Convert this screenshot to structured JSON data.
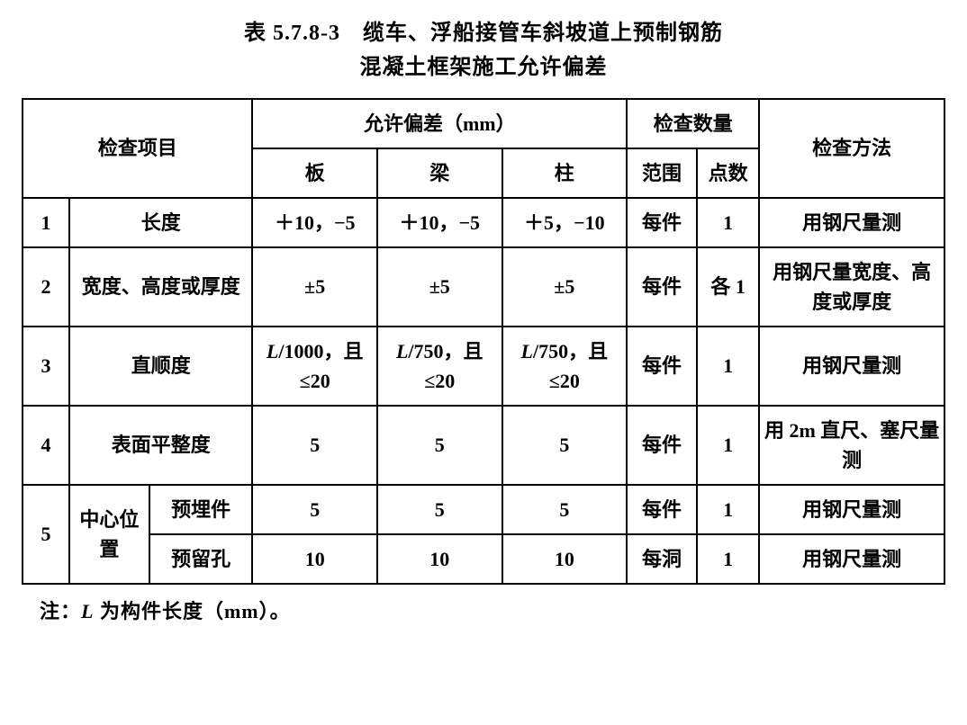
{
  "title_line1": "表 5.7.8-3　缆车、浮船接管车斜坡道上预制钢筋",
  "title_line2": "混凝土框架施工允许偏差",
  "headers": {
    "item": "检查项目",
    "deviation": "允许偏差（mm）",
    "quantity": "检查数量",
    "method": "检查方法",
    "dev_sub": {
      "slab": "板",
      "beam": "梁",
      "column": "柱"
    },
    "qty_sub": {
      "scope": "范围",
      "count": "点数"
    }
  },
  "rows": {
    "r1": {
      "idx": "1",
      "name": "长度",
      "slab": "＋10，−5",
      "beam": "＋10，−5",
      "column": "＋5，−10",
      "scope": "每件",
      "count": "1",
      "method": "用钢尺量测"
    },
    "r2": {
      "idx": "2",
      "name": "宽度、高度或厚度",
      "slab": "±5",
      "beam": "±5",
      "column": "±5",
      "scope": "每件",
      "count": "各 1",
      "method": "用钢尺量宽度、高度或厚度"
    },
    "r3": {
      "idx": "3",
      "name": "直顺度",
      "slab_a": "L",
      "slab_b": "/1000，且≤20",
      "beam_a": "L",
      "beam_b": "/750，且≤20",
      "column_a": "L",
      "column_b": "/750，且≤20",
      "scope": "每件",
      "count": "1",
      "method": "用钢尺量测"
    },
    "r4": {
      "idx": "4",
      "name": "表面平整度",
      "slab": "5",
      "beam": "5",
      "column": "5",
      "scope": "每件",
      "count": "1",
      "method": "用 2m 直尺、塞尺量测"
    },
    "r5": {
      "idx": "5",
      "group": "中心位置",
      "a": {
        "name": "预埋件",
        "slab": "5",
        "beam": "5",
        "column": "5",
        "scope": "每件",
        "count": "1",
        "method": "用钢尺量测"
      },
      "b": {
        "name": "预留孔",
        "slab": "10",
        "beam": "10",
        "column": "10",
        "scope": "每洞",
        "count": "1",
        "method": "用钢尺量测"
      }
    }
  },
  "note_a": "注：",
  "note_b": "L",
  "note_c": " 为构件长度（mm）。"
}
